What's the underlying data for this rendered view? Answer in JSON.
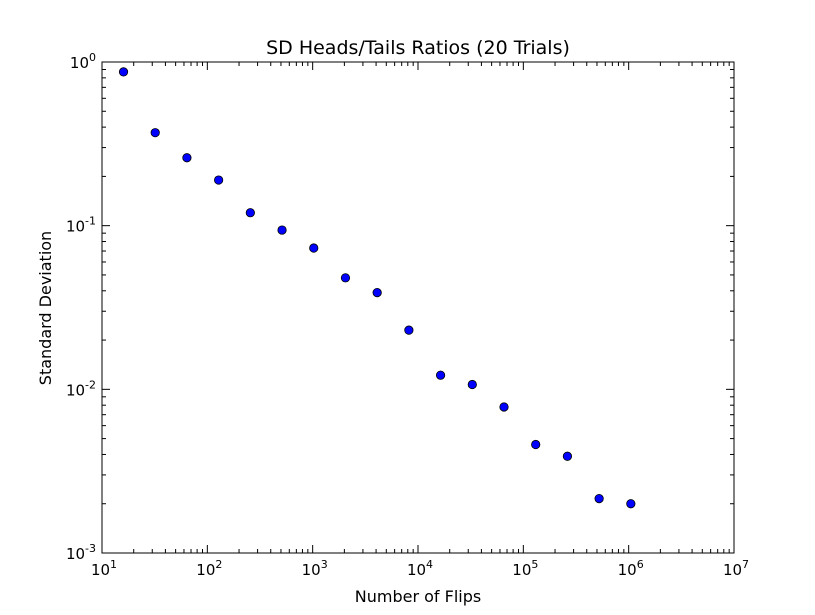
{
  "chart_data": {
    "type": "scatter",
    "title": "SD Heads/Tails Ratios (20 Trials)",
    "xlabel": "Number of Flips",
    "ylabel": "Standard Deviation",
    "xscale": "log",
    "yscale": "log",
    "xlim": [
      10,
      10000000
    ],
    "ylim": [
      0.001,
      1
    ],
    "grid": false,
    "legend": "none",
    "marker_color": "#0000ff",
    "x_ticks": [
      {
        "base": "10",
        "exp": "1"
      },
      {
        "base": "10",
        "exp": "2"
      },
      {
        "base": "10",
        "exp": "3"
      },
      {
        "base": "10",
        "exp": "4"
      },
      {
        "base": "10",
        "exp": "5"
      },
      {
        "base": "10",
        "exp": "6"
      },
      {
        "base": "10",
        "exp": "7"
      }
    ],
    "y_ticks": [
      {
        "base": "10",
        "exp": "-3"
      },
      {
        "base": "10",
        "exp": "-2"
      },
      {
        "base": "10",
        "exp": "-1"
      },
      {
        "base": "10",
        "exp": "0"
      }
    ],
    "series": [
      {
        "points": [
          {
            "x": 16,
            "y": 0.87
          },
          {
            "x": 32,
            "y": 0.37
          },
          {
            "x": 64,
            "y": 0.26
          },
          {
            "x": 128,
            "y": 0.19
          },
          {
            "x": 256,
            "y": 0.12
          },
          {
            "x": 512,
            "y": 0.094
          },
          {
            "x": 1024,
            "y": 0.073
          },
          {
            "x": 2048,
            "y": 0.048
          },
          {
            "x": 4096,
            "y": 0.039
          },
          {
            "x": 8192,
            "y": 0.023
          },
          {
            "x": 16384,
            "y": 0.0122
          },
          {
            "x": 32768,
            "y": 0.0107
          },
          {
            "x": 65536,
            "y": 0.0078
          },
          {
            "x": 131072,
            "y": 0.0046
          },
          {
            "x": 262144,
            "y": 0.0039
          },
          {
            "x": 524288,
            "y": 0.00215
          },
          {
            "x": 1048576,
            "y": 0.002
          }
        ]
      }
    ]
  }
}
